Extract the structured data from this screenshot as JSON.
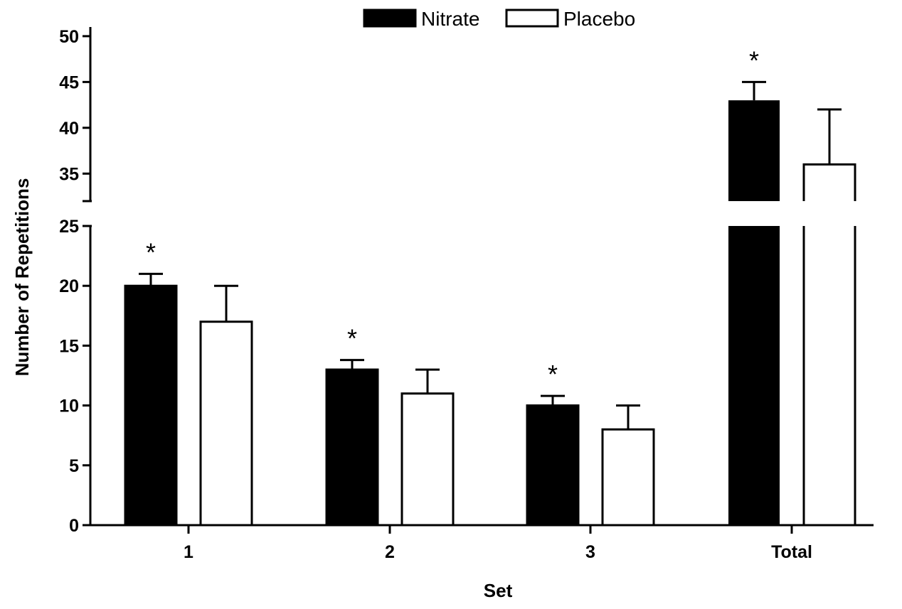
{
  "chart_data": {
    "type": "bar",
    "title": "",
    "xlabel": "Set",
    "ylabel": "Number of Repetitions",
    "categories": [
      "1",
      "2",
      "3",
      "Total"
    ],
    "series": [
      {
        "name": "Nitrate",
        "values": [
          20,
          13,
          10,
          43
        ],
        "errors": [
          1,
          0.8,
          0.8,
          2
        ],
        "significant": [
          true,
          true,
          true,
          true
        ],
        "color": "#000000"
      },
      {
        "name": "Placebo",
        "values": [
          17,
          11,
          8,
          36
        ],
        "errors": [
          3,
          2,
          2,
          6
        ],
        "significant": [
          false,
          false,
          false,
          false
        ],
        "color": "#ffffff"
      }
    ],
    "significance_marker": "*",
    "y_axis_break": {
      "lower_range": [
        0,
        25
      ],
      "upper_range": [
        32,
        51
      ]
    },
    "y_ticks_lower": [
      "0",
      "5",
      "10",
      "15",
      "20",
      "25"
    ],
    "y_ticks_upper": [
      "35",
      "40",
      "45",
      "50"
    ],
    "legend": {
      "position": "top-center"
    },
    "grid": false
  }
}
